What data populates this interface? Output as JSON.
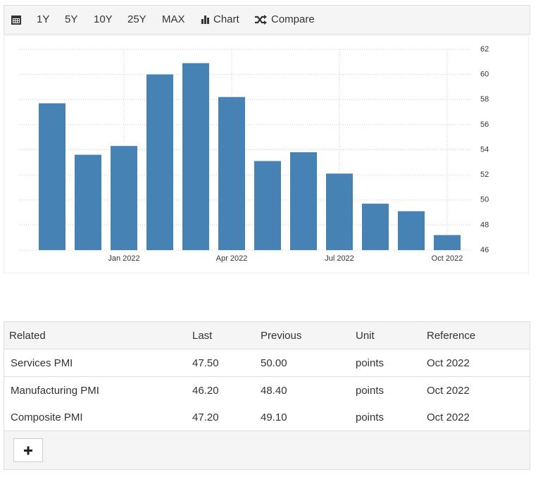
{
  "toolbar": {
    "ranges": [
      "1Y",
      "5Y",
      "10Y",
      "25Y",
      "MAX"
    ],
    "chart": "Chart",
    "compare": "Compare"
  },
  "chart_data": {
    "type": "bar",
    "categories": [
      null,
      null,
      "Jan 2022",
      null,
      null,
      "Apr 2022",
      null,
      null,
      "Jul 2022",
      null,
      null,
      "Oct 2022"
    ],
    "values": [
      57.7,
      53.6,
      54.3,
      60.0,
      60.9,
      58.2,
      53.1,
      53.8,
      52.1,
      49.7,
      49.1,
      47.2
    ],
    "color": "#4682b4",
    "ylim": [
      46,
      62
    ],
    "yticks": [
      46,
      48,
      50,
      52,
      54,
      56,
      58,
      60,
      62
    ],
    "grid": true
  },
  "table": {
    "columns": [
      "Related",
      "Last",
      "Previous",
      "Unit",
      "Reference"
    ],
    "rows": [
      [
        "Services PMI",
        "47.50",
        "50.00",
        "points",
        "Oct 2022"
      ],
      [
        "Manufacturing PMI",
        "46.20",
        "48.40",
        "points",
        "Oct 2022"
      ],
      [
        "Composite PMI",
        "47.20",
        "49.10",
        "points",
        "Oct 2022"
      ]
    ]
  }
}
